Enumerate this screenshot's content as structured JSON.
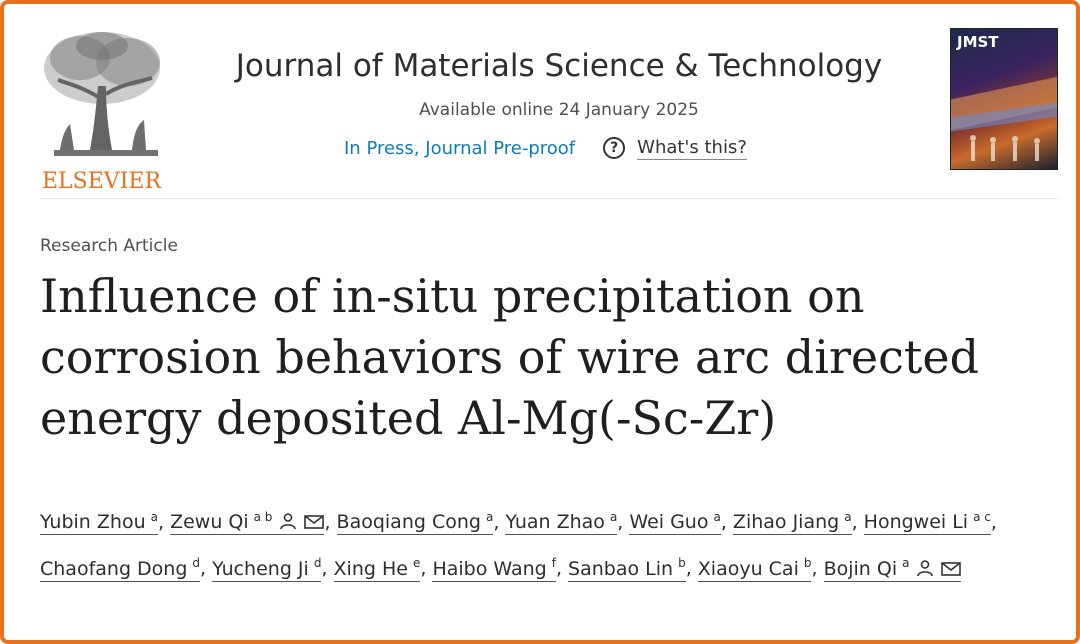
{
  "publisher": {
    "logo_text": "ELSEVIER"
  },
  "journal": {
    "title": "Journal of Materials Science & Technology",
    "availability": "Available online 24 January 2025",
    "status_link": "In Press, Journal Pre-proof",
    "help_link": "What's this?",
    "cover_label": "JMST"
  },
  "article": {
    "type": "Research Article",
    "title": "Influence of in-situ precipitation on corrosion behaviors of wire arc directed energy deposited Al-Mg(-Sc-Zr)"
  },
  "authors": [
    {
      "name": "Yubin Zhou",
      "aff": "a"
    },
    {
      "name": "Zewu Qi",
      "aff": "a b",
      "corresponding": true
    },
    {
      "name": "Baoqiang Cong",
      "aff": "a"
    },
    {
      "name": "Yuan Zhao",
      "aff": "a"
    },
    {
      "name": "Wei Guo",
      "aff": "a"
    },
    {
      "name": "Zihao Jiang",
      "aff": "a"
    },
    {
      "name": "Hongwei Li",
      "aff": "a c"
    },
    {
      "name": "Chaofang Dong",
      "aff": "d"
    },
    {
      "name": "Yucheng Ji",
      "aff": "d"
    },
    {
      "name": "Xing He",
      "aff": "e"
    },
    {
      "name": "Haibo Wang",
      "aff": "f"
    },
    {
      "name": "Sanbao Lin",
      "aff": "b"
    },
    {
      "name": "Xiaoyu Cai",
      "aff": "b"
    },
    {
      "name": "Bojin Qi",
      "aff": "a",
      "corresponding": true
    }
  ],
  "colors": {
    "frame": "#e9711c",
    "link": "#0c7dbb",
    "publisher": "#e9711c"
  },
  "icons": {
    "help": "question-circle-icon",
    "person": "person-icon",
    "mail": "envelope-icon"
  }
}
